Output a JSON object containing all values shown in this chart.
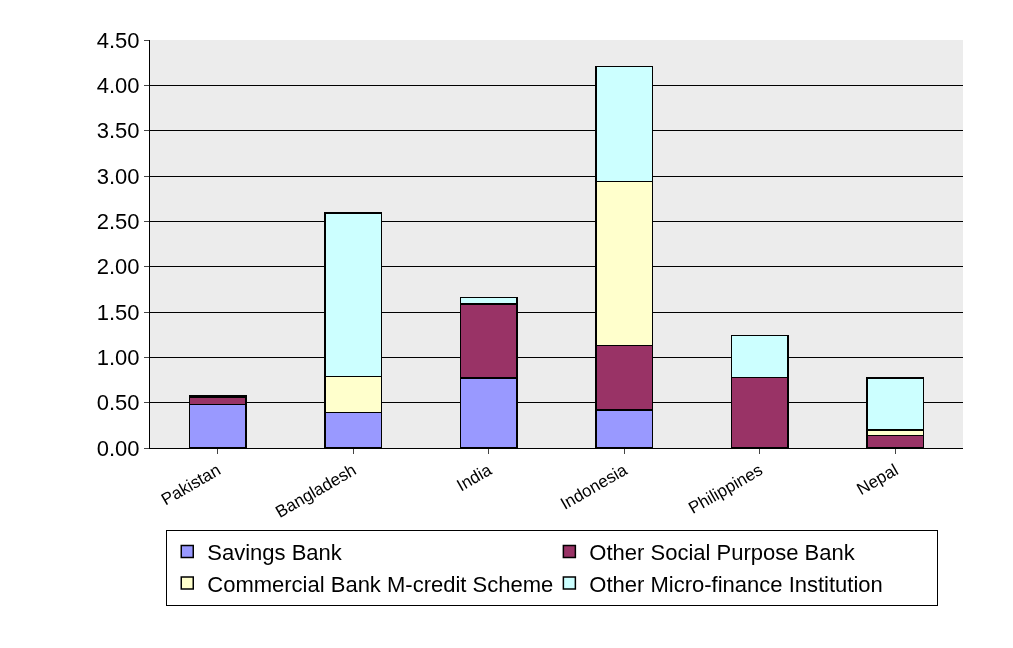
{
  "chart_data": {
    "type": "bar",
    "stacked": true,
    "categories": [
      "Pakistan",
      "Bangladesh",
      "India",
      "Indonesia",
      "Philippines",
      "Nepal"
    ],
    "series": [
      {
        "name": "Savings Bank",
        "color": "#9999ff",
        "values": [
          0.48,
          0.39,
          0.77,
          0.42,
          null,
          null
        ]
      },
      {
        "name": "Other Social Purpose Bank",
        "color": "#993366",
        "values": [
          0.08,
          0,
          0.82,
          0.71,
          0.78,
          0.14
        ]
      },
      {
        "name": "Commercial Bank M-credit Scheme",
        "color": "#ffffcc",
        "values": [
          0,
          0.4,
          0,
          1.81,
          0,
          0.06
        ]
      },
      {
        "name": "Other Micro-finance Institution",
        "color": "#ccffff",
        "values": [
          0.02,
          1.8,
          0.07,
          1.27,
          0.46,
          0.57
        ]
      }
    ],
    "ylim": [
      0,
      4.5
    ],
    "yticks": [
      {
        "value": 0,
        "label": "0.00"
      },
      {
        "value": 0.5,
        "label": "0.50"
      },
      {
        "value": 1,
        "label": "1.00"
      },
      {
        "value": 1.5,
        "label": "1.50"
      },
      {
        "value": 2,
        "label": "2.00"
      },
      {
        "value": 2.5,
        "label": "2.50"
      },
      {
        "value": 3,
        "label": "3.00"
      },
      {
        "value": 3.5,
        "label": "3.50"
      },
      {
        "value": 4,
        "label": "4.00"
      },
      {
        "value": 4.5,
        "label": "4.50"
      }
    ],
    "grid": "y",
    "legend": "bottom"
  }
}
